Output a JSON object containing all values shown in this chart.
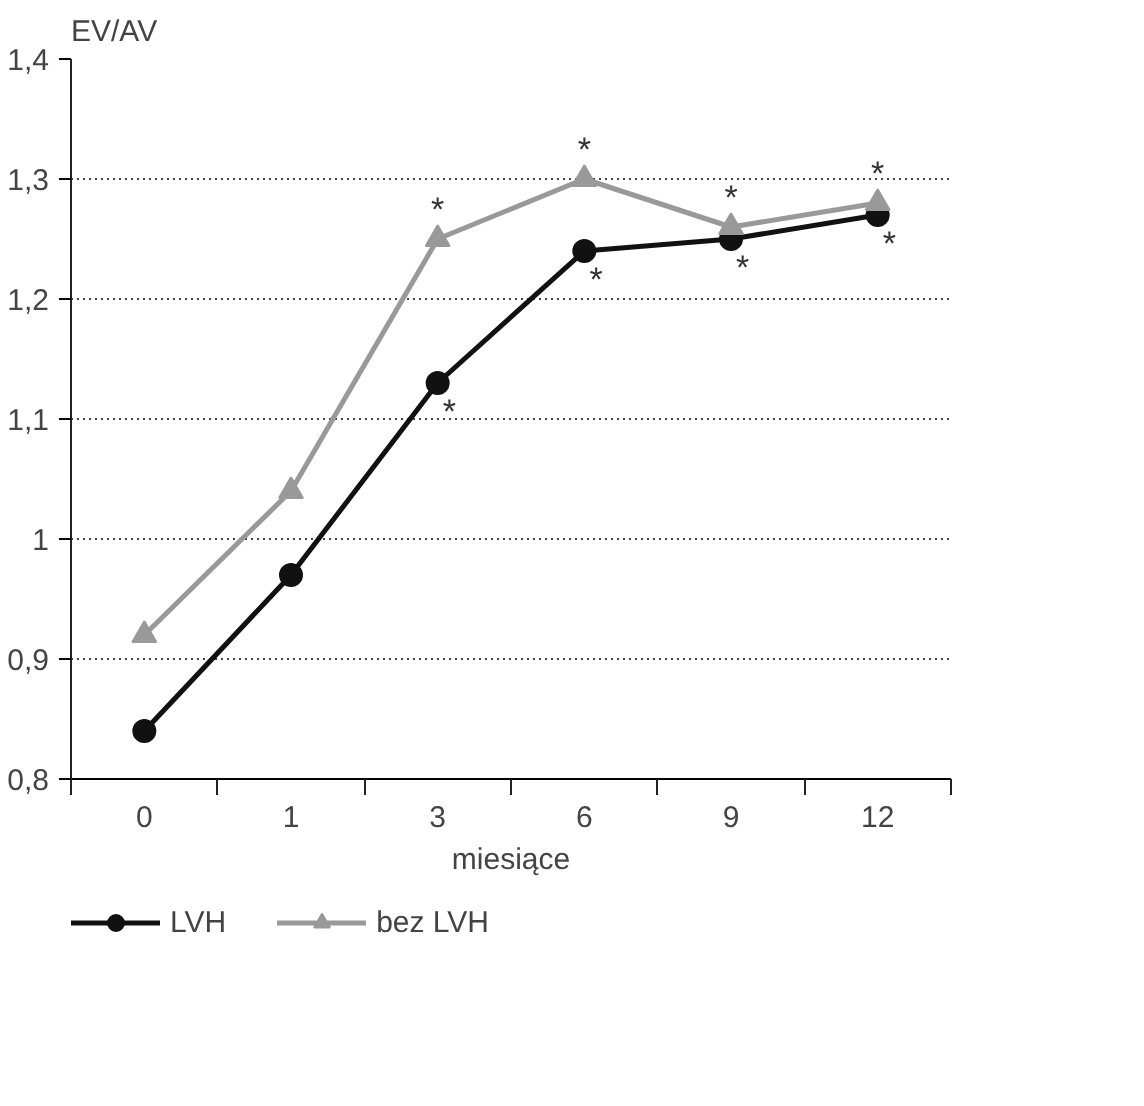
{
  "chart_data": {
    "type": "line",
    "ylabel": "EV/AV",
    "xlabel": "miesiące",
    "categories": [
      "0",
      "1",
      "3",
      "6",
      "9",
      "12"
    ],
    "series": [
      {
        "name": "LVH",
        "color": "#111111",
        "marker": "circle",
        "values": [
          0.84,
          0.97,
          1.13,
          1.24,
          1.25,
          1.27
        ]
      },
      {
        "name": "bez LVH",
        "color": "#999999",
        "marker": "triangle",
        "values": [
          0.92,
          1.04,
          1.25,
          1.3,
          1.26,
          1.28
        ]
      }
    ],
    "ylim": [
      0.8,
      1.4
    ],
    "yticks": [
      {
        "value": 0.8,
        "label": "0,8"
      },
      {
        "value": 0.9,
        "label": "0,9"
      },
      1,
      {
        "value": 1.1,
        "label": "1,1"
      },
      {
        "value": 1.2,
        "label": "1,2"
      },
      {
        "value": 1.3,
        "label": "1,3"
      },
      {
        "value": 1.4,
        "label": "1,4"
      }
    ],
    "grid": "y",
    "legend": "bottom",
    "line_style": "solid",
    "annotations": [
      {
        "text": "*",
        "x": "3",
        "y": 1.13
      },
      {
        "text": "*",
        "x": "6",
        "y": 1.24
      },
      {
        "text": "*",
        "x": "9",
        "y": 1.25
      },
      {
        "text": "*",
        "x": "12",
        "y": 1.27
      },
      {
        "text": "*",
        "x": "3",
        "y": 1.25
      },
      {
        "text": "*",
        "x": "6",
        "y": 1.3
      },
      {
        "text": "*",
        "x": "9",
        "y": 1.26
      },
      {
        "text": "*",
        "x": "12",
        "y": 1.28
      }
    ]
  }
}
